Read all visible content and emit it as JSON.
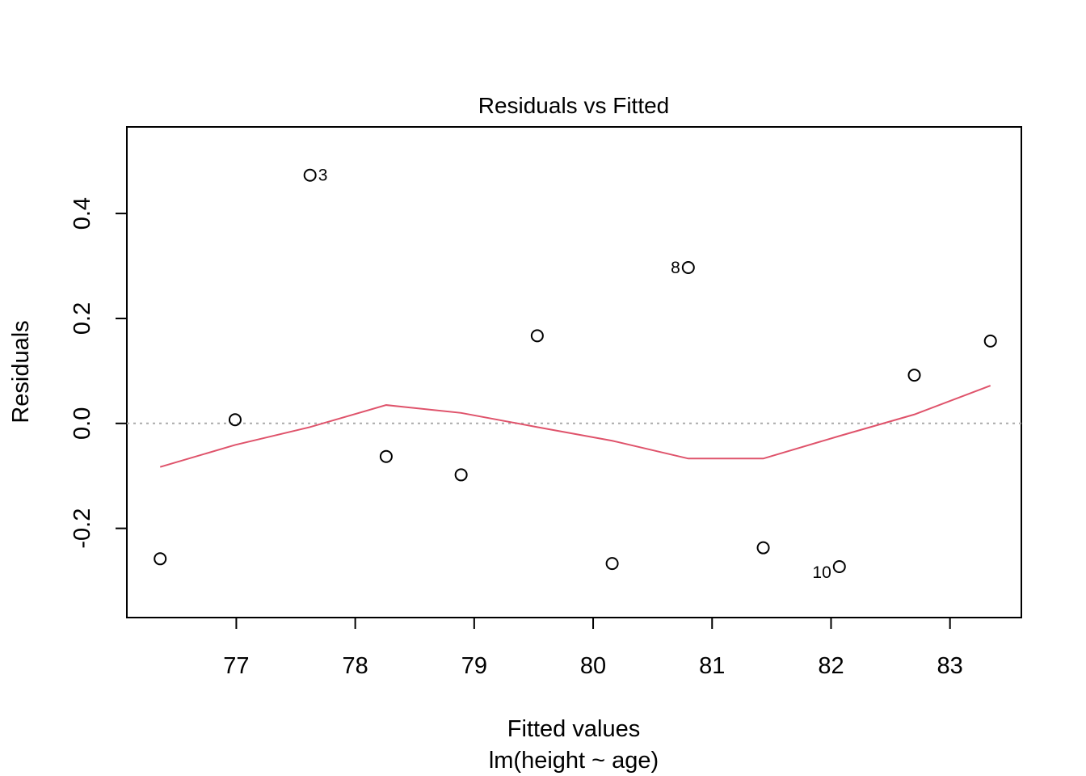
{
  "chart_data": {
    "type": "scatter",
    "title": "Residuals vs Fitted",
    "xlabel": "Fitted values",
    "subtitle": "lm(height ~ age)",
    "ylabel": "Residuals",
    "xlim": [
      76.08,
      83.6
    ],
    "ylim": [
      -0.37,
      0.565
    ],
    "x_ticks": [
      77,
      78,
      79,
      80,
      81,
      82,
      83
    ],
    "y_ticks": [
      -0.2,
      0.0,
      0.2,
      0.4
    ],
    "y_tick_labels": [
      "-0.2",
      "0.0",
      "0.2",
      "0.4"
    ],
    "reference_line": {
      "y": 0,
      "style": "dotted",
      "color": "#AAAAAA"
    },
    "points": [
      {
        "x": 76.36,
        "y": -0.258,
        "label": ""
      },
      {
        "x": 76.99,
        "y": 0.007,
        "label": ""
      },
      {
        "x": 77.62,
        "y": 0.473,
        "label": "3"
      },
      {
        "x": 78.26,
        "y": -0.063,
        "label": ""
      },
      {
        "x": 78.89,
        "y": -0.098,
        "label": ""
      },
      {
        "x": 79.53,
        "y": 0.167,
        "label": ""
      },
      {
        "x": 80.16,
        "y": -0.267,
        "label": ""
      },
      {
        "x": 80.8,
        "y": 0.297,
        "label": "8"
      },
      {
        "x": 81.43,
        "y": -0.237,
        "label": ""
      },
      {
        "x": 82.07,
        "y": -0.273,
        "label": "10"
      },
      {
        "x": 82.7,
        "y": 0.092,
        "label": ""
      },
      {
        "x": 83.34,
        "y": 0.157,
        "label": ""
      }
    ],
    "smooth": {
      "color": "#DF536B",
      "x": [
        76.36,
        76.99,
        77.62,
        78.26,
        78.89,
        79.53,
        80.16,
        80.8,
        81.43,
        82.07,
        82.7,
        83.34
      ],
      "y": [
        -0.083,
        -0.041,
        -0.007,
        0.035,
        0.02,
        -0.007,
        -0.033,
        -0.067,
        -0.067,
        -0.024,
        0.017,
        0.072
      ]
    }
  }
}
